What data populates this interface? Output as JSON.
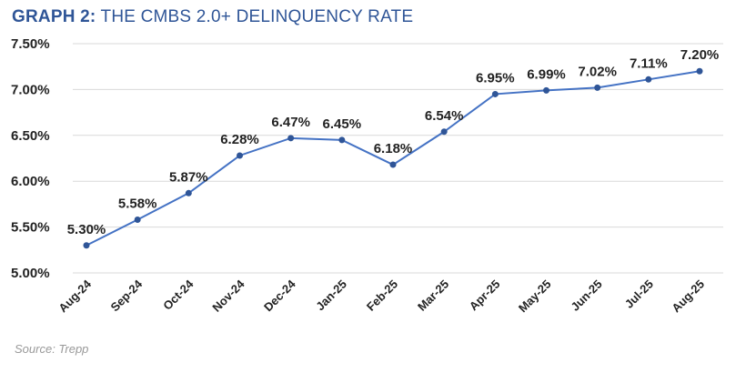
{
  "title_prefix": "GRAPH 2:",
  "title_rest": " THE CMBS 2.0+ DELINQUENCY RATE",
  "source": "Source: Trepp",
  "colors": {
    "title": "#2f5597",
    "line": "#4472c4",
    "marker": "#2f5597",
    "grid": "#d9d9d9"
  },
  "chart_data": {
    "type": "line",
    "categories": [
      "Aug-24",
      "Sep-24",
      "Oct-24",
      "Nov-24",
      "Dec-24",
      "Jan-25",
      "Feb-25",
      "Mar-25",
      "Apr-25",
      "May-25",
      "Jun-25",
      "Jul-25",
      "Aug-25"
    ],
    "values": [
      5.3,
      5.58,
      5.87,
      6.28,
      6.47,
      6.45,
      6.18,
      6.54,
      6.95,
      6.99,
      7.02,
      7.11,
      7.2
    ],
    "data_labels": [
      "5.30%",
      "5.58%",
      "5.87%",
      "6.28%",
      "6.47%",
      "6.45%",
      "6.18%",
      "6.54%",
      "6.95%",
      "6.99%",
      "7.02%",
      "7.11%",
      "7.20%"
    ],
    "yticks": [
      "5.00%",
      "5.50%",
      "6.00%",
      "6.50%",
      "7.00%",
      "7.50%"
    ],
    "ytick_values": [
      5.0,
      5.5,
      6.0,
      6.5,
      7.0,
      7.5
    ],
    "ylim": [
      5.0,
      7.5
    ],
    "grid": true,
    "title": "",
    "xlabel": "",
    "ylabel": ""
  }
}
